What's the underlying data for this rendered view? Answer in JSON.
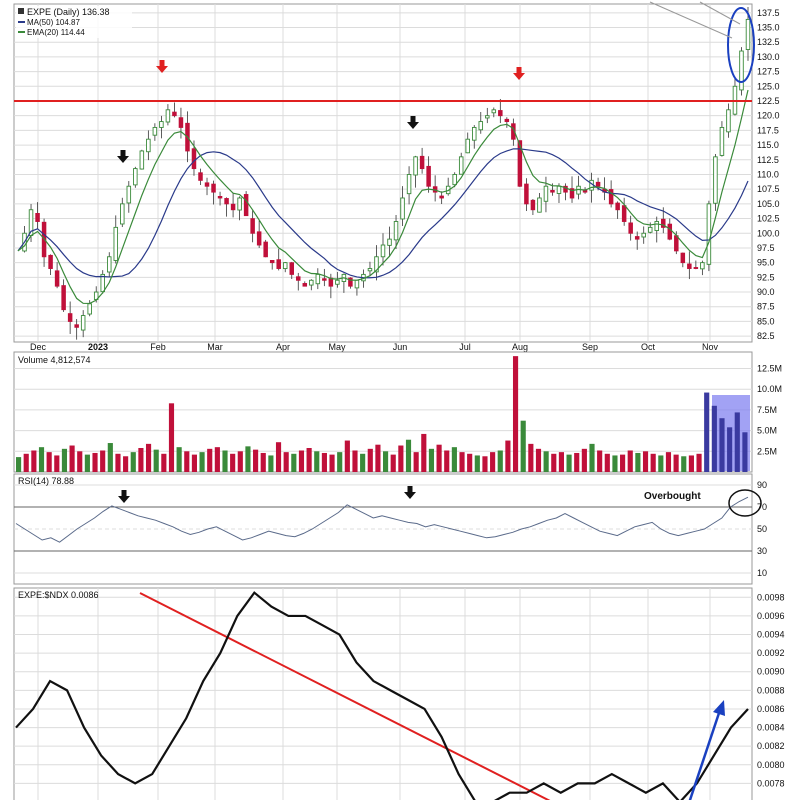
{
  "price_panel": {
    "legend_title": "EXPE (Daily) 136.38",
    "legend_ma": "MA(50) 104.87",
    "legend_ema": "EMA(20) 114.44",
    "y_ticks": [
      "137.5",
      "135.0",
      "132.5",
      "130.0",
      "127.5",
      "125.0",
      "122.5",
      "120.0",
      "117.5",
      "115.0",
      "112.5",
      "110.0",
      "107.5",
      "105.0",
      "102.5",
      "100.0",
      "97.5",
      "95.0",
      "92.5",
      "90.0",
      "87.5",
      "85.0",
      "82.5"
    ],
    "x_labels": [
      "Dec",
      "2023",
      "Feb",
      "Mar",
      "Apr",
      "May",
      "Jun",
      "Jul",
      "Aug",
      "Sep",
      "Oct",
      "Nov"
    ],
    "resistance_level": 122.5
  },
  "volume_panel": {
    "legend": "Volume 4,812,574",
    "y_ticks": [
      "12.5M",
      "10.0M",
      "7.5M",
      "5.0M",
      "2.5M"
    ]
  },
  "rsi_panel": {
    "legend": "RSI(14) 78.88",
    "y_ticks": [
      "90",
      "70",
      "50",
      "30",
      "10"
    ],
    "annotation": "Overbought"
  },
  "ratio_panel": {
    "legend": "EXPE:$NDX 0.0086",
    "y_ticks": [
      "0.0098",
      "0.0096",
      "0.0094",
      "0.0092",
      "0.0090",
      "0.0088",
      "0.0086",
      "0.0084",
      "0.0082",
      "0.0080",
      "0.0078"
    ]
  },
  "colors": {
    "up": "#3a8a3a",
    "down": "#c0103a",
    "ma50": "#2a3a8a",
    "ema20": "#3a8a3a",
    "resistance": "#e02020",
    "annotation": "#1a40c0",
    "volume_highlight": "#7b7bf0",
    "grid": "#dcdcdc"
  },
  "chart_data": [
    {
      "type": "candlestick",
      "title": "EXPE (Daily) 136.38",
      "x_dates": [
        "Dec",
        "2023",
        "Feb",
        "Mar",
        "Apr",
        "May",
        "Jun",
        "Jul",
        "Aug",
        "Sep",
        "Oct",
        "Nov"
      ],
      "ylim": [
        81.5,
        139
      ],
      "series": [
        {
          "name": "EXPE (Daily) 136.38",
          "close_path": [
            97,
            100,
            104,
            102,
            96,
            94,
            91,
            87,
            85,
            84,
            86,
            88,
            90,
            93,
            96,
            101,
            105,
            108,
            111,
            114,
            116,
            118,
            119,
            121,
            120,
            118,
            114,
            111,
            109,
            108,
            107,
            106,
            105,
            104,
            106,
            103,
            100,
            98,
            96,
            95,
            94,
            95,
            93,
            92,
            91,
            92,
            93,
            92,
            91,
            92,
            93,
            91,
            92,
            93,
            94,
            96,
            98,
            99,
            102,
            106,
            110,
            113,
            111,
            108,
            107,
            106,
            108,
            110,
            113,
            116,
            118,
            119,
            120,
            121,
            120,
            119,
            116,
            108,
            105,
            104,
            106,
            108,
            107,
            108,
            107,
            106,
            108,
            107,
            109,
            108,
            107,
            105,
            104,
            102,
            100,
            99,
            100,
            101,
            102,
            101,
            99,
            97,
            95,
            94,
            94,
            95,
            105,
            113,
            118,
            121,
            125,
            131,
            136.38
          ]
        },
        {
          "name": "MA(50) 104.87",
          "last": 104.87
        },
        {
          "name": "EMA(20) 114.44",
          "last": 114.44
        }
      ],
      "hline": 122.5
    },
    {
      "type": "bar",
      "title": "Volume 4,812,574",
      "ylim": [
        0,
        14500000
      ],
      "values_millions": [
        1.8,
        2.2,
        2.6,
        3.0,
        2.4,
        2.0,
        2.8,
        3.2,
        2.5,
        2.1,
        2.3,
        2.6,
        3.5,
        2.2,
        1.9,
        2.4,
        2.9,
        3.4,
        2.7,
        2.2,
        8.3,
        3.0,
        2.5,
        2.1,
        2.4,
        2.8,
        3.0,
        2.6,
        2.2,
        2.5,
        3.1,
        2.7,
        2.3,
        2.0,
        3.6,
        2.4,
        2.2,
        2.6,
        2.9,
        2.5,
        2.3,
        2.1,
        2.4,
        3.8,
        2.6,
        2.2,
        2.8,
        3.3,
        2.5,
        2.1,
        3.2,
        3.9,
        2.4,
        4.6,
        2.8,
        3.3,
        2.6,
        3.0,
        2.4,
        2.2,
        2.0,
        1.9,
        2.4,
        2.6,
        3.8,
        14.0,
        6.2,
        3.4,
        2.8,
        2.5,
        2.2,
        2.4,
        2.1,
        2.3,
        2.8,
        3.4,
        2.6,
        2.2,
        2.0,
        2.1,
        2.6,
        2.3,
        2.5,
        2.2,
        2.0,
        2.4,
        2.1,
        1.9,
        2.0,
        2.2,
        9.6,
        8.0,
        6.5,
        5.4,
        7.2,
        4.8
      ]
    },
    {
      "type": "line",
      "title": "RSI(14) 78.88",
      "ylim": [
        0,
        100
      ],
      "reference_lines": [
        70,
        30
      ],
      "values": [
        55,
        50,
        45,
        40,
        42,
        38,
        44,
        50,
        55,
        60,
        66,
        71,
        68,
        65,
        62,
        60,
        58,
        55,
        52,
        48,
        45,
        47,
        50,
        52,
        48,
        44,
        40,
        42,
        45,
        48,
        46,
        44,
        43,
        46,
        50,
        55,
        60,
        65,
        72,
        68,
        64,
        60,
        62,
        60,
        58,
        56,
        55,
        52,
        54,
        52,
        50,
        48,
        46,
        44,
        42,
        43,
        45,
        47,
        50,
        52,
        55,
        58,
        60,
        64,
        60,
        56,
        52,
        48,
        46,
        44,
        48,
        52,
        54,
        56,
        50,
        46,
        44,
        46,
        48,
        50,
        55,
        60,
        70,
        75,
        78.88
      ]
    },
    {
      "type": "line",
      "title": "EXPE:$NDX 0.0086",
      "ylim": [
        0.0076,
        0.0099
      ],
      "values": [
        0.0084,
        0.0086,
        0.0089,
        0.0088,
        0.0084,
        0.0081,
        0.0079,
        0.0078,
        0.0079,
        0.0082,
        0.0085,
        0.0089,
        0.0092,
        0.0096,
        0.00985,
        0.0097,
        0.0096,
        0.0096,
        0.0095,
        0.0094,
        0.0091,
        0.0089,
        0.0088,
        0.0087,
        0.0086,
        0.0083,
        0.0079,
        0.0076,
        0.0076,
        0.0077,
        0.0077,
        0.0078,
        0.0077,
        0.0078,
        0.0078,
        0.0079,
        0.0078,
        0.0077,
        0.0078,
        0.0076,
        0.0078,
        0.0081,
        0.0084,
        0.0086
      ]
    }
  ]
}
